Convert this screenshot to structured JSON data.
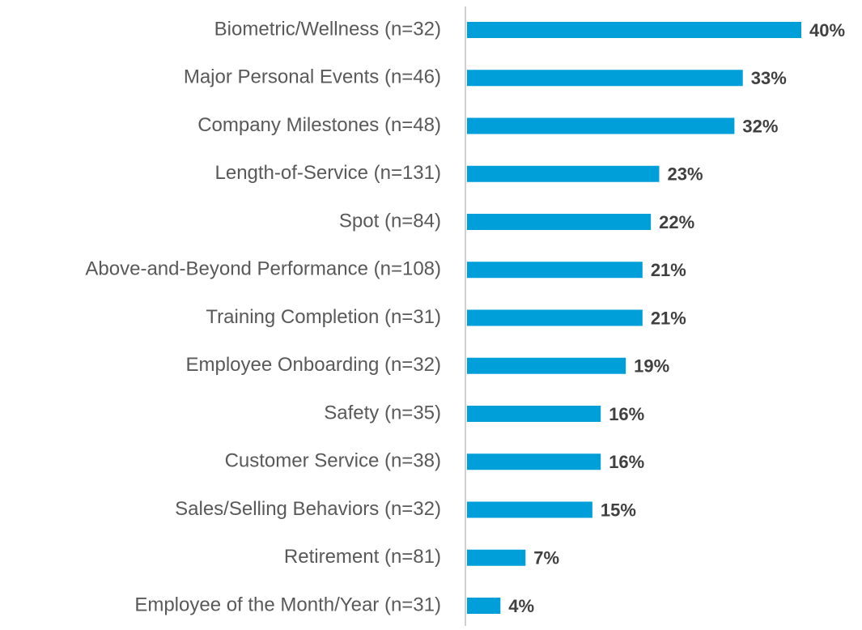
{
  "chart_data": {
    "type": "bar",
    "orientation": "horizontal",
    "color": "#009fda",
    "categories": [
      "Biometric/Wellness (n=32)",
      "Major Personal Events (n=46)",
      "Company Milestones (n=48)",
      "Length-of-Service (n=131)",
      "Spot (n=84)",
      "Above-and-Beyond Performance (n=108)",
      "Training Completion (n=31)",
      "Employee Onboarding (n=32)",
      "Safety (n=35)",
      "Customer Service (n=38)",
      "Sales/Selling Behaviors (n=32)",
      "Retirement (n=81)",
      "Employee of the Month/Year (n=31)"
    ],
    "values": [
      40,
      33,
      32,
      23,
      22,
      21,
      21,
      19,
      16,
      16,
      15,
      7,
      4
    ],
    "value_labels": [
      "40%",
      "33%",
      "32%",
      "23%",
      "22%",
      "21%",
      "21%",
      "19%",
      "16%",
      "16%",
      "15%",
      "7%",
      "4%"
    ]
  }
}
